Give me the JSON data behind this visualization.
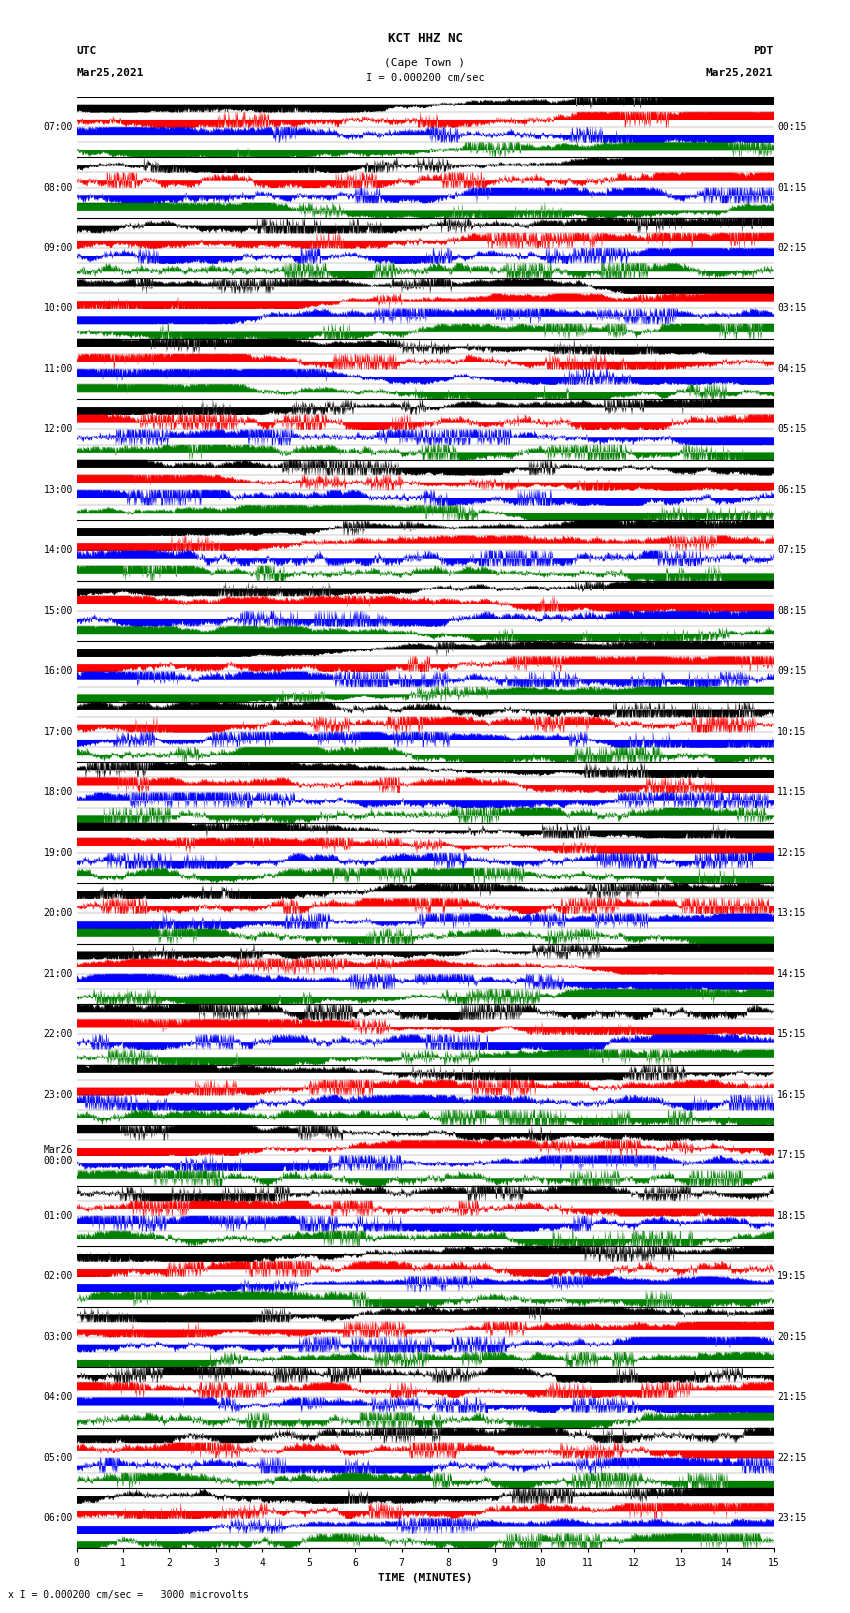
{
  "title_line1": "KCT HHZ NC",
  "title_line2": "(Cape Town )",
  "scale_label": "I = 0.000200 cm/sec",
  "utc_label": "UTC",
  "utc_date": "Mar25,2021",
  "pdt_label": "PDT",
  "pdt_date": "Mar25,2021",
  "xlabel": "TIME (MINUTES)",
  "bottom_annotation": "x I = 0.000200 cm/sec =   3000 microvolts",
  "bg_color": "#ffffff",
  "utc_times": [
    "07:00",
    "08:00",
    "09:00",
    "10:00",
    "11:00",
    "12:00",
    "13:00",
    "14:00",
    "15:00",
    "16:00",
    "17:00",
    "18:00",
    "19:00",
    "20:00",
    "21:00",
    "22:00",
    "23:00",
    "Mar26\n00:00",
    "01:00",
    "02:00",
    "03:00",
    "04:00",
    "05:00",
    "06:00"
  ],
  "pdt_times": [
    "00:15",
    "01:15",
    "02:15",
    "03:15",
    "04:15",
    "05:15",
    "06:15",
    "07:15",
    "08:15",
    "09:15",
    "10:15",
    "11:15",
    "12:15",
    "13:15",
    "14:15",
    "15:15",
    "16:15",
    "17:15",
    "18:15",
    "19:15",
    "20:15",
    "21:15",
    "22:15",
    "23:15"
  ],
  "num_rows": 24,
  "minutes_per_row": 15,
  "sub_colors": [
    "black",
    "red",
    "blue",
    "green"
  ],
  "noise_seed": 42,
  "samples_per_row": 2000
}
